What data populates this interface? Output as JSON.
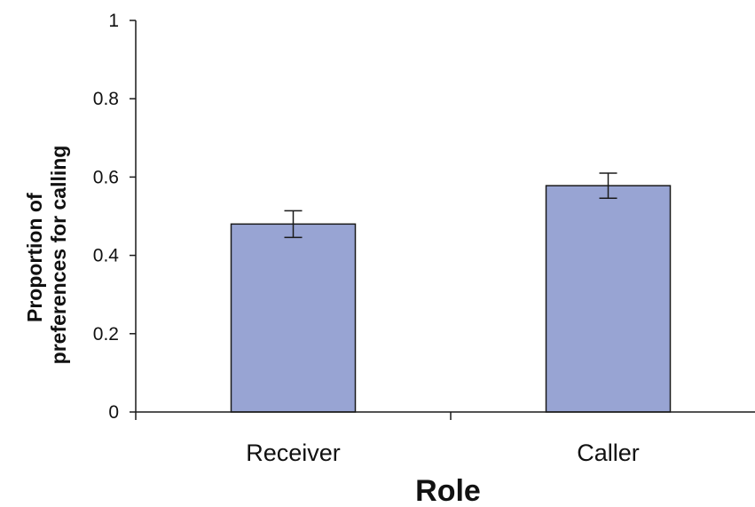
{
  "chart_data": {
    "type": "bar",
    "title": "",
    "xlabel": "Role",
    "ylabel": "Proportion of preferences for calling",
    "ylabel_lines": [
      "Proportion of",
      "preferences for calling"
    ],
    "categories": [
      "Receiver",
      "Caller"
    ],
    "values": [
      0.48,
      0.578
    ],
    "error": [
      0.034,
      0.032
    ],
    "ylim": [
      0,
      1
    ],
    "yticks": [
      0,
      0.2,
      0.4,
      0.6,
      0.8,
      1
    ],
    "ytick_labels": [
      "0",
      "0.2",
      "0.4",
      "0.6",
      "0.8",
      "1"
    ],
    "grid": false,
    "legend": "none",
    "bar_color": "#98a4d3",
    "bar_edge_color": "#1a1a1a",
    "axis_color": "#1a1a1a"
  }
}
